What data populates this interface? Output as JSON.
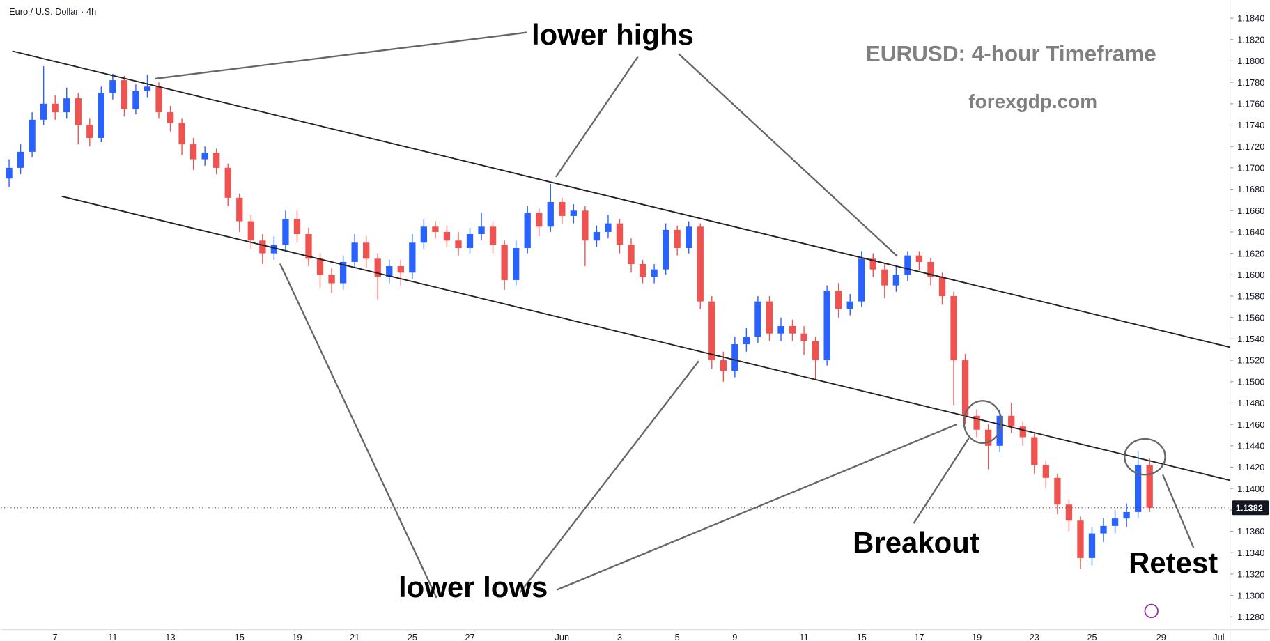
{
  "chart_data": {
    "type": "candlestick",
    "symbol": "Euro / U.S. Dollar · 4h",
    "title": "EURUSD: 4-hour Timeframe",
    "subtitle": "forexgdp.com",
    "annotations": [
      "lower highs",
      "lower lows",
      "Breakout",
      "Retest"
    ],
    "up_color": "#2962ff",
    "down_color": "#ef5350",
    "last_price": 1.1382,
    "ylim": [
      1.1268,
      1.1857
    ],
    "yticks": [
      {
        "value": 1.128,
        "label": "1.1280"
      },
      {
        "value": 1.13,
        "label": "1.1300"
      },
      {
        "value": 1.132,
        "label": "1.1320"
      },
      {
        "value": 1.134,
        "label": "1.1340"
      },
      {
        "value": 1.136,
        "label": "1.1360"
      },
      {
        "value": 1.138,
        "label": "1.1380"
      },
      {
        "value": 1.14,
        "label": "1.1400"
      },
      {
        "value": 1.142,
        "label": "1.1420"
      },
      {
        "value": 1.144,
        "label": "1.1440"
      },
      {
        "value": 1.146,
        "label": "1.1460"
      },
      {
        "value": 1.148,
        "label": "1.1480"
      },
      {
        "value": 1.15,
        "label": "1.1500"
      },
      {
        "value": 1.152,
        "label": "1.1520"
      },
      {
        "value": 1.154,
        "label": "1.1540"
      },
      {
        "value": 1.156,
        "label": "1.1560"
      },
      {
        "value": 1.158,
        "label": "1.1580"
      },
      {
        "value": 1.16,
        "label": "1.1600"
      },
      {
        "value": 1.162,
        "label": "1.1620"
      },
      {
        "value": 1.164,
        "label": "1.1640"
      },
      {
        "value": 1.166,
        "label": "1.1660"
      },
      {
        "value": 1.168,
        "label": "1.1680"
      },
      {
        "value": 1.17,
        "label": "1.1700"
      },
      {
        "value": 1.172,
        "label": "1.1720"
      },
      {
        "value": 1.174,
        "label": "1.1740"
      },
      {
        "value": 1.176,
        "label": "1.1760"
      },
      {
        "value": 1.178,
        "label": "1.1780"
      },
      {
        "value": 1.18,
        "label": "1.1800"
      },
      {
        "value": 1.182,
        "label": "1.1820"
      },
      {
        "value": 1.184,
        "label": "1.1840"
      }
    ],
    "categories": [
      null,
      null,
      null,
      null,
      "7",
      null,
      null,
      null,
      null,
      "11",
      null,
      null,
      null,
      null,
      "13",
      null,
      null,
      null,
      null,
      null,
      "15",
      null,
      null,
      null,
      null,
      "19",
      null,
      null,
      null,
      null,
      "21",
      null,
      null,
      null,
      null,
      "25",
      null,
      null,
      null,
      null,
      "27",
      null,
      null,
      null,
      null,
      null,
      null,
      null,
      "Jun",
      null,
      null,
      null,
      null,
      "3",
      null,
      null,
      null,
      null,
      "5",
      null,
      null,
      null,
      null,
      "9",
      null,
      null,
      null,
      null,
      null,
      "11",
      null,
      null,
      null,
      null,
      "15",
      null,
      null,
      null,
      null,
      "17",
      null,
      null,
      null,
      null,
      "19",
      null,
      null,
      null,
      null,
      "23",
      null,
      null,
      null,
      null,
      "25",
      null,
      null,
      null,
      null,
      null,
      "29",
      null,
      null,
      null,
      null,
      "Jul"
    ],
    "open": [
      1.169,
      1.17,
      1.1715,
      1.1745,
      1.176,
      1.1752,
      1.1765,
      1.174,
      1.1728,
      1.177,
      1.1782,
      1.1755,
      1.1772,
      1.1776,
      1.1752,
      1.1742,
      1.1722,
      1.1708,
      1.1714,
      1.17,
      1.1672,
      1.165,
      1.1632,
      1.162,
      1.1628,
      1.1652,
      1.1638,
      1.1615,
      1.16,
      1.1592,
      1.1612,
      1.163,
      1.1615,
      1.1598,
      1.1608,
      1.1602,
      1.163,
      1.1645,
      1.164,
      1.1632,
      1.1625,
      1.1638,
      1.1645,
      1.1628,
      1.1595,
      1.1625,
      1.1658,
      1.1645,
      1.1668,
      1.1655,
      1.166,
      1.1632,
      1.164,
      1.1648,
      1.1628,
      1.161,
      1.1598,
      1.1605,
      1.1642,
      1.1625,
      1.1645,
      1.1575,
      1.152,
      1.151,
      1.1535,
      1.1542,
      1.1575,
      1.1545,
      1.1552,
      1.1545,
      1.1538,
      1.152,
      1.1585,
      1.1568,
      1.1575,
      1.1615,
      1.1605,
      1.159,
      1.16,
      1.1618,
      1.1612,
      1.1598,
      1.158,
      1.152,
      1.1468,
      1.1455,
      1.144,
      1.1468,
      1.1458,
      1.1448,
      1.1422,
      1.141,
      1.1385,
      1.137,
      1.1335,
      1.1358,
      1.1365,
      1.1372,
      1.1378,
      1.1422,
      null,
      null,
      null,
      null,
      null,
      null
    ],
    "high": [
      1.1708,
      1.1722,
      1.1752,
      1.1795,
      1.1768,
      1.1775,
      1.177,
      1.1746,
      1.1776,
      1.1788,
      1.1786,
      1.1778,
      1.1787,
      1.178,
      1.1758,
      1.1746,
      1.1728,
      1.172,
      1.1718,
      1.1704,
      1.1676,
      1.1656,
      1.1638,
      1.1636,
      1.166,
      1.166,
      1.1644,
      1.162,
      1.1606,
      1.1618,
      1.1638,
      1.1636,
      1.162,
      1.1614,
      1.1614,
      1.1638,
      1.1652,
      1.165,
      1.1646,
      1.164,
      1.1644,
      1.1658,
      1.165,
      1.1632,
      1.1632,
      1.1664,
      1.1662,
      1.1685,
      1.1672,
      1.1666,
      1.1664,
      1.1646,
      1.1656,
      1.1652,
      1.1634,
      1.1614,
      1.161,
      1.1648,
      1.1646,
      1.165,
      1.1648,
      1.158,
      1.1528,
      1.1542,
      1.155,
      1.158,
      1.158,
      1.156,
      1.1558,
      1.1552,
      1.1542,
      1.159,
      1.1592,
      1.1582,
      1.1622,
      1.162,
      1.161,
      1.1608,
      1.1622,
      1.1622,
      1.1616,
      1.1602,
      1.1584,
      1.1526,
      1.1474,
      1.146,
      1.1474,
      1.148,
      1.1462,
      1.1452,
      1.1426,
      1.1414,
      1.139,
      1.1374,
      1.1364,
      1.1372,
      1.138,
      1.1386,
      1.1435,
      1.1428,
      null,
      null,
      null,
      null,
      null,
      null
    ],
    "low": [
      1.1682,
      1.1694,
      1.171,
      1.174,
      1.1745,
      1.1746,
      1.1722,
      1.172,
      1.1724,
      1.1764,
      1.1748,
      1.175,
      1.1766,
      1.1746,
      1.1734,
      1.1712,
      1.1698,
      1.1702,
      1.1694,
      1.1664,
      1.164,
      1.1624,
      1.161,
      1.1614,
      1.1622,
      1.163,
      1.1608,
      1.1588,
      1.1583,
      1.1586,
      1.1606,
      1.1606,
      1.1577,
      1.1592,
      1.159,
      1.1596,
      1.1624,
      1.1634,
      1.1626,
      1.1618,
      1.162,
      1.1632,
      1.162,
      1.1586,
      1.159,
      1.162,
      1.1636,
      1.164,
      1.1648,
      1.1648,
      1.1608,
      1.1626,
      1.1634,
      1.162,
      1.1602,
      1.1592,
      1.1592,
      1.16,
      1.1618,
      1.162,
      1.1568,
      1.1512,
      1.15,
      1.1504,
      1.1528,
      1.1536,
      1.1538,
      1.1538,
      1.1538,
      1.1525,
      1.1502,
      1.1515,
      1.156,
      1.1562,
      1.157,
      1.1598,
      1.1578,
      1.1584,
      1.1594,
      1.1604,
      1.159,
      1.1572,
      1.1478,
      1.146,
      1.1448,
      1.1418,
      1.1434,
      1.1452,
      1.144,
      1.1414,
      1.14,
      1.1376,
      1.136,
      1.1325,
      1.1328,
      1.135,
      1.1358,
      1.1364,
      1.1372,
      1.1378,
      null,
      null,
      null,
      null,
      null,
      null
    ],
    "close": [
      1.17,
      1.1715,
      1.1745,
      1.176,
      1.1752,
      1.1765,
      1.174,
      1.1728,
      1.177,
      1.1782,
      1.1755,
      1.1772,
      1.1776,
      1.1752,
      1.1742,
      1.1722,
      1.1708,
      1.1714,
      1.17,
      1.1672,
      1.165,
      1.1632,
      1.162,
      1.1628,
      1.1652,
      1.1638,
      1.1615,
      1.16,
      1.1592,
      1.1612,
      1.163,
      1.1615,
      1.1598,
      1.1608,
      1.1602,
      1.163,
      1.1645,
      1.164,
      1.1632,
      1.1625,
      1.1638,
      1.1645,
      1.1628,
      1.1595,
      1.1625,
      1.1658,
      1.1645,
      1.1668,
      1.1655,
      1.166,
      1.1632,
      1.164,
      1.1648,
      1.1628,
      1.161,
      1.1598,
      1.1605,
      1.1642,
      1.1625,
      1.1645,
      1.1575,
      1.152,
      1.151,
      1.1535,
      1.1542,
      1.1575,
      1.1545,
      1.1552,
      1.1545,
      1.1538,
      1.152,
      1.1585,
      1.1568,
      1.1575,
      1.1615,
      1.1605,
      1.159,
      1.16,
      1.1618,
      1.1612,
      1.1598,
      1.158,
      1.152,
      1.1468,
      1.1455,
      1.144,
      1.1468,
      1.1458,
      1.1448,
      1.1422,
      1.141,
      1.1385,
      1.137,
      1.1335,
      1.1358,
      1.1365,
      1.1372,
      1.1378,
      1.1422,
      1.1382,
      null,
      null,
      null,
      null,
      null,
      null
    ]
  }
}
